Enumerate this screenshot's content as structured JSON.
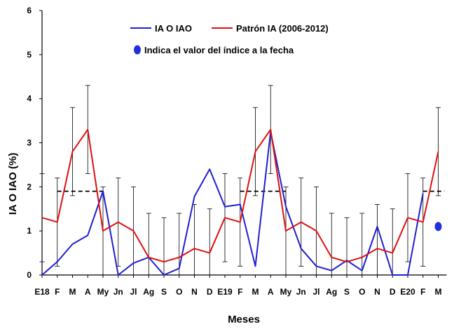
{
  "chart_data": {
    "type": "line",
    "title": "",
    "xlabel": "Meses",
    "ylabel": "IA O IAO (%)",
    "ylim": [
      0,
      6
    ],
    "yticks": [
      0,
      1,
      2,
      3,
      4,
      5,
      6
    ],
    "categories": [
      "E18",
      "F",
      "M",
      "A",
      "My",
      "Jn",
      "Jl",
      "Ag",
      "S",
      "O",
      "N",
      "D",
      "E19",
      "F",
      "M",
      "A",
      "My",
      "Jn",
      "Jl",
      "Ag",
      "S",
      "O",
      "N",
      "D",
      "E20",
      "F",
      "M"
    ],
    "series": [
      {
        "name": "IA O IAO",
        "color": "#1f1fd0",
        "values": [
          0,
          0.3,
          0.7,
          0.9,
          1.9,
          0,
          0.27,
          0.4,
          0,
          0.15,
          1.78,
          2.4,
          1.55,
          1.6,
          0.2,
          3.25,
          1.55,
          0.6,
          0.2,
          0.1,
          0.33,
          0.1,
          1.1,
          0,
          0,
          1.85,
          null
        ]
      },
      {
        "name": "Patrón IA (2006-2012)",
        "color": "#e01010",
        "values": [
          1.3,
          1.2,
          2.8,
          3.3,
          1.0,
          1.2,
          1.0,
          0.4,
          0.3,
          0.4,
          0.6,
          0.5,
          1.3,
          1.2,
          2.8,
          3.3,
          1.0,
          1.2,
          1.0,
          0.4,
          0.3,
          0.4,
          0.6,
          0.5,
          1.3,
          1.2,
          2.8
        ],
        "error_low": [
          0.3,
          0.2,
          1.8,
          2.3,
          0,
          0.2,
          0,
          0,
          0,
          0,
          0,
          0,
          0.3,
          0.2,
          1.8,
          2.3,
          0,
          0.2,
          0,
          0,
          0,
          0,
          0,
          0,
          0.3,
          0.2,
          1.8
        ],
        "error_high": [
          2.3,
          2.2,
          3.8,
          4.3,
          2.0,
          2.2,
          2.0,
          1.4,
          1.3,
          1.4,
          1.6,
          1.5,
          2.3,
          2.2,
          3.8,
          4.3,
          2.0,
          2.2,
          2.0,
          1.4,
          1.3,
          1.4,
          1.6,
          1.5,
          2.3,
          2.2,
          3.8
        ]
      }
    ],
    "threshold_segments": [
      {
        "from": 1,
        "to": 4,
        "value": 1.9
      },
      {
        "from": 13,
        "to": 16,
        "value": 1.9
      },
      {
        "from": 25,
        "to": 26.4,
        "value": 1.9
      }
    ],
    "current_value": {
      "index": 26,
      "value": 1.1,
      "color": "#1f2fe0"
    },
    "legend": {
      "placement": "top",
      "items": [
        "IA O IAO",
        "Patrón IA (2006-2012)",
        "Indica el valor del índice a la fecha"
      ]
    },
    "grid": false
  }
}
